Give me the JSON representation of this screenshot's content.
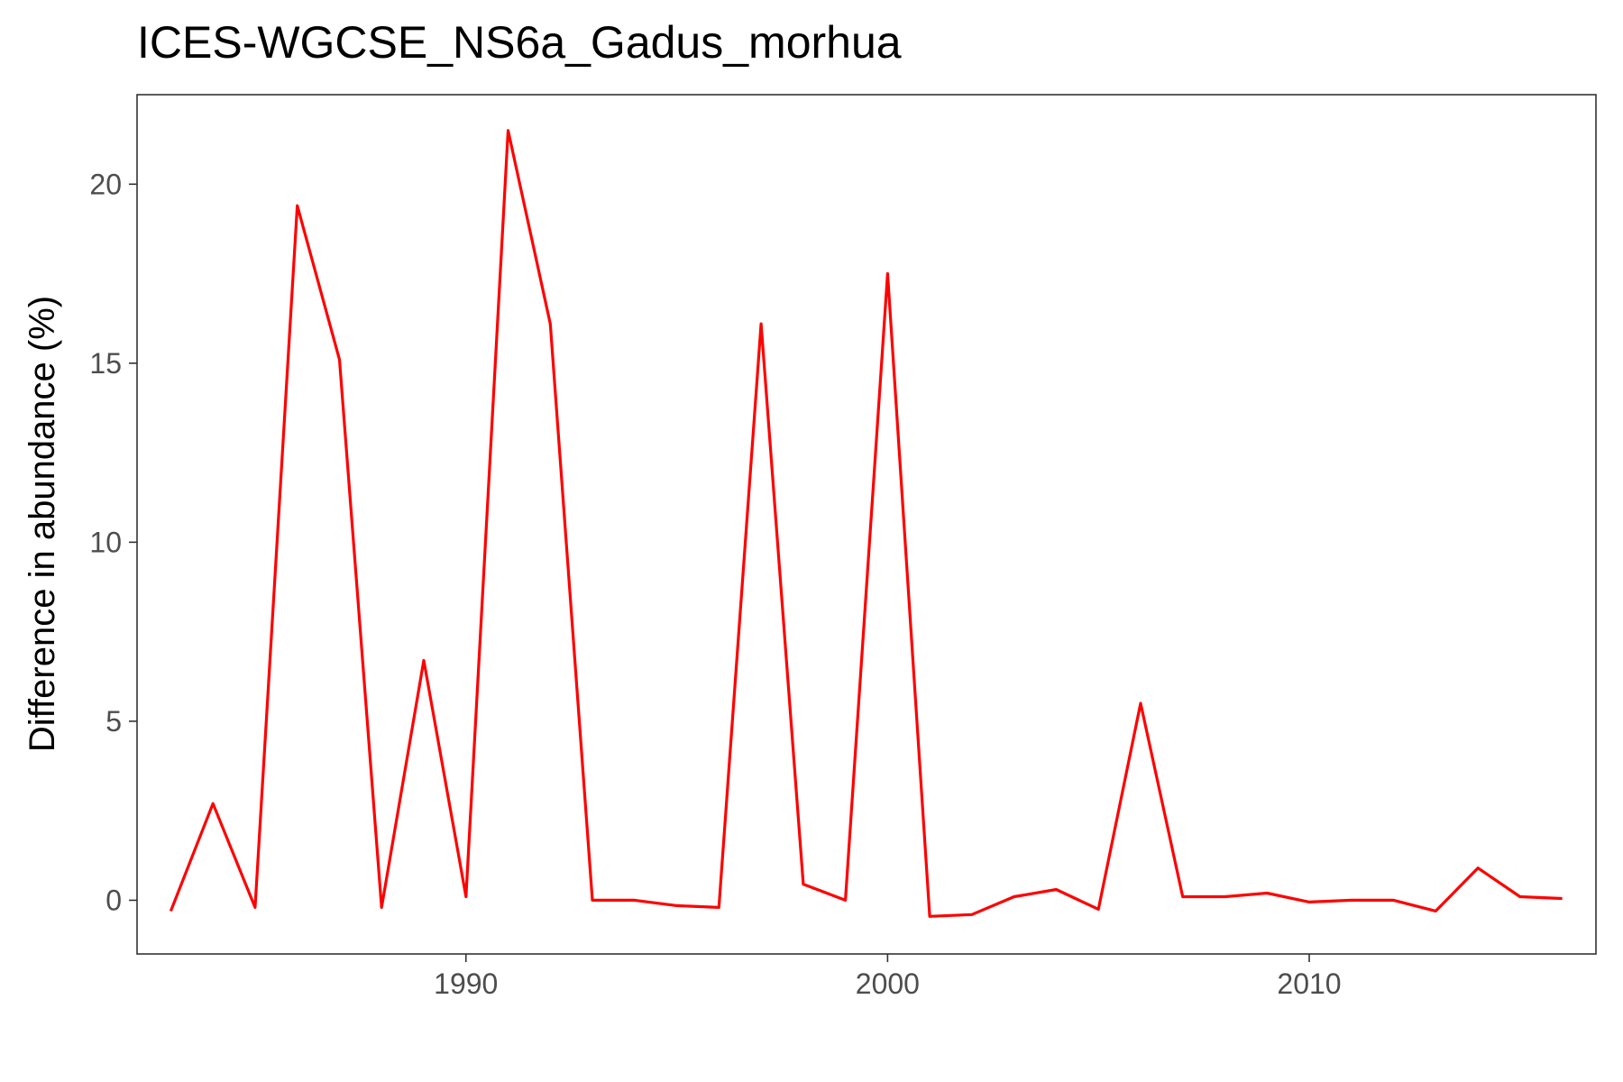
{
  "chart_data": {
    "type": "line",
    "title": "ICES-WGCSE_NS6a_Gadus_morhua",
    "xlabel": "",
    "ylabel": "Difference in abundance (%)",
    "xlim": [
      1982.2,
      2016.8
    ],
    "ylim": [
      -1.5,
      22.5
    ],
    "x_ticks": [
      1990,
      2000,
      2010
    ],
    "y_ticks": [
      0,
      5,
      10,
      15,
      20
    ],
    "grid": false,
    "legend": "none",
    "line_color": "#ff0000",
    "series": [
      {
        "x": [
          1983,
          1984,
          1985,
          1986,
          1987,
          1988,
          1989,
          1990,
          1991,
          1992,
          1993,
          1994,
          1995,
          1996,
          1997,
          1998,
          1999,
          2000,
          2001,
          2002,
          2003,
          2004,
          2005,
          2006,
          2007,
          2008,
          2009,
          2010,
          2011,
          2012,
          2013,
          2014,
          2015,
          2016
        ],
        "y": [
          -0.3,
          2.7,
          -0.2,
          19.4,
          15.1,
          -0.2,
          6.7,
          0.1,
          21.5,
          16.1,
          0.0,
          0.0,
          -0.15,
          -0.2,
          16.1,
          0.45,
          0.0,
          17.5,
          -0.45,
          -0.4,
          0.1,
          0.3,
          -0.25,
          5.5,
          0.1,
          0.1,
          0.2,
          -0.05,
          0.0,
          0.0,
          -0.3,
          0.9,
          0.1,
          0.05
        ]
      }
    ]
  }
}
